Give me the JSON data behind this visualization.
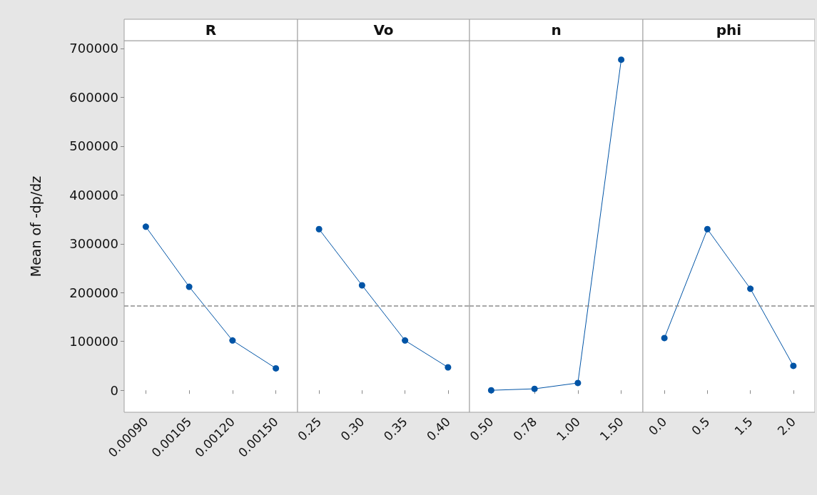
{
  "chart_data": [
    {
      "type": "line",
      "title": "R",
      "ylabel": "Mean of -dp/dz",
      "categories": [
        "0.00090",
        "0.00105",
        "0.00120",
        "0.00150"
      ],
      "series": [
        {
          "color": "#0054a6",
          "values": [
            335000,
            212000,
            102000,
            45000
          ]
        }
      ],
      "ylim": [
        -45000,
        716000
      ],
      "yticks": [
        0,
        100000,
        200000,
        300000,
        400000,
        500000,
        600000,
        700000
      ],
      "ref_lines": [
        {
          "axis": "y",
          "value": 173000,
          "color": "#8c8c8c",
          "line_style": "dashed"
        }
      ],
      "marker": "circle",
      "line_style": "solid",
      "grid": false
    },
    {
      "type": "line",
      "title": "Vo",
      "categories": [
        "0.25",
        "0.30",
        "0.35",
        "0.40"
      ],
      "series": [
        {
          "color": "#0054a6",
          "values": [
            330000,
            215000,
            102000,
            47000
          ]
        }
      ],
      "ylim": [
        -45000,
        716000
      ],
      "yticks": [
        0,
        100000,
        200000,
        300000,
        400000,
        500000,
        600000,
        700000
      ],
      "tick_labels": "x",
      "ref_lines": [
        {
          "axis": "y",
          "value": 173000,
          "color": "#8c8c8c",
          "line_style": "dashed"
        }
      ],
      "marker": "circle",
      "line_style": "solid",
      "grid": false
    },
    {
      "type": "line",
      "title": "n",
      "categories": [
        "0.50",
        "0.78",
        "1.00",
        "1.50"
      ],
      "series": [
        {
          "color": "#0054a6",
          "values": [
            0,
            3000,
            15000,
            677000
          ]
        }
      ],
      "ylim": [
        -45000,
        716000
      ],
      "yticks": [
        0,
        100000,
        200000,
        300000,
        400000,
        500000,
        600000,
        700000
      ],
      "tick_labels": "x",
      "ref_lines": [
        {
          "axis": "y",
          "value": 173000,
          "color": "#8c8c8c",
          "line_style": "dashed"
        }
      ],
      "marker": "circle",
      "line_style": "solid",
      "grid": false
    },
    {
      "type": "line",
      "title": "phi",
      "categories": [
        "0.0",
        "0.5",
        "1.5",
        "2.0"
      ],
      "series": [
        {
          "color": "#0054a6",
          "values": [
            107000,
            330000,
            208000,
            50000
          ]
        }
      ],
      "ylim": [
        -45000,
        716000
      ],
      "yticks": [
        0,
        100000,
        200000,
        300000,
        400000,
        500000,
        600000,
        700000
      ],
      "tick_labels": "x",
      "ref_lines": [
        {
          "axis": "y",
          "value": 173000,
          "color": "#8c8c8c",
          "line_style": "dashed"
        }
      ],
      "marker": "circle",
      "line_style": "solid",
      "grid": false
    }
  ]
}
